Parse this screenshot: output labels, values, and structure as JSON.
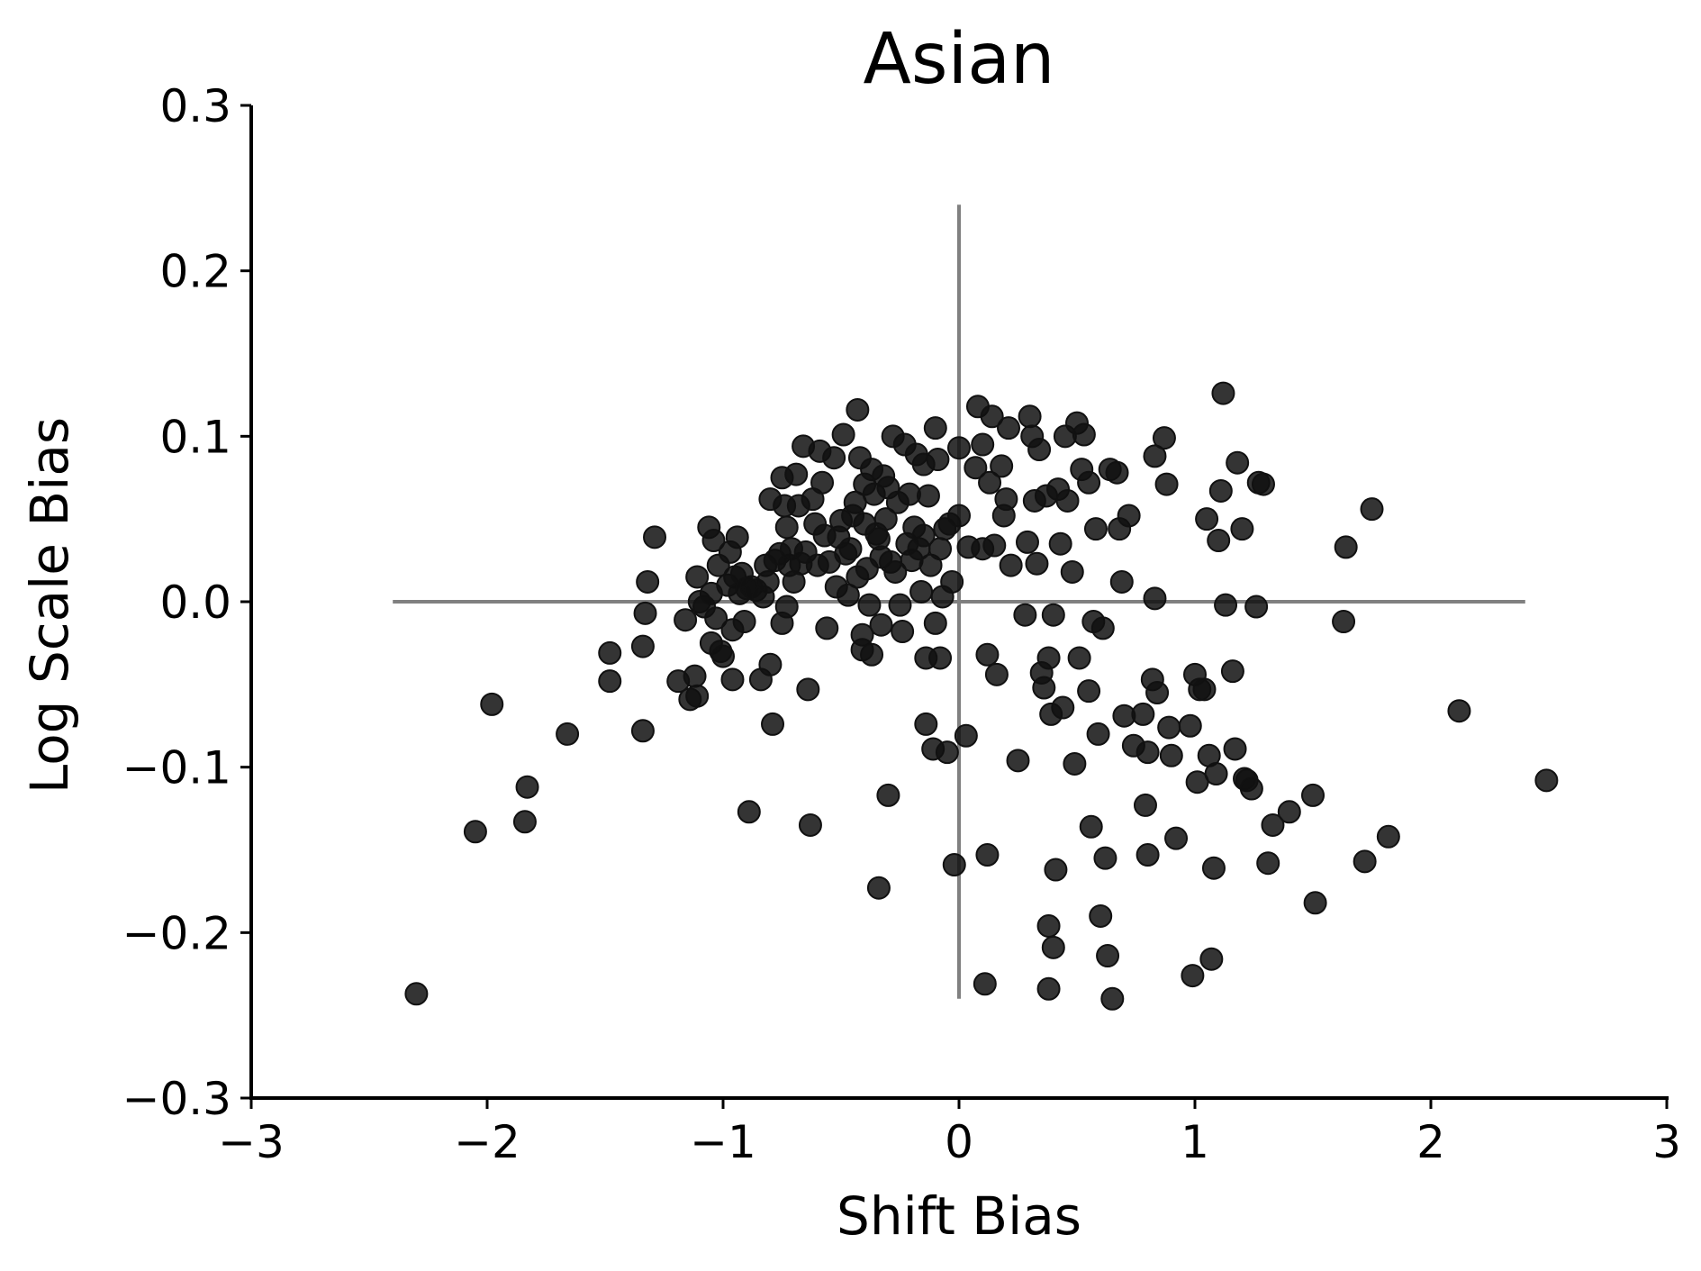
{
  "chart_data": {
    "type": "scatter",
    "title": "Asian",
    "xlabel": "Shift Bias",
    "ylabel": "Log Scale Bias",
    "xlim": [
      -3,
      3
    ],
    "ylim": [
      -0.3,
      0.3
    ],
    "xticks": [
      -3,
      -2,
      -1,
      0,
      1,
      2,
      3
    ],
    "xtick_labels": [
      "−3",
      "−2",
      "−1",
      "0",
      "1",
      "2",
      "3"
    ],
    "yticks": [
      -0.3,
      -0.2,
      -0.1,
      0.0,
      0.1,
      0.2,
      0.3
    ],
    "ytick_labels": [
      "−0.3",
      "−0.2",
      "−0.1",
      "0.0",
      "0.1",
      "0.2",
      "0.3"
    ],
    "grid": false,
    "reference_lines": {
      "color": "#808080",
      "horizontal": {
        "y": 0,
        "x_range": [
          -2.4,
          2.4
        ]
      },
      "vertical": {
        "x": 0,
        "y_range": [
          -0.24,
          0.24
        ]
      }
    },
    "marker_color": "#111111",
    "series": [
      {
        "points": [
          [
            -2.3,
            -0.237
          ],
          [
            -2.05,
            -0.139
          ],
          [
            -1.98,
            -0.062
          ],
          [
            -1.84,
            -0.133
          ],
          [
            -1.83,
            -0.112
          ],
          [
            -1.66,
            -0.08
          ],
          [
            -1.48,
            -0.031
          ],
          [
            -1.48,
            -0.048
          ],
          [
            -1.34,
            -0.027
          ],
          [
            -1.34,
            -0.078
          ],
          [
            -1.33,
            -0.007
          ],
          [
            -1.32,
            0.012
          ],
          [
            -1.29,
            0.039
          ],
          [
            -1.19,
            -0.048
          ],
          [
            -1.16,
            -0.011
          ],
          [
            -1.14,
            -0.059
          ],
          [
            -1.12,
            -0.045
          ],
          [
            -1.11,
            -0.057
          ],
          [
            -1.11,
            0.015
          ],
          [
            -1.1,
            0.0
          ],
          [
            -1.08,
            -0.003
          ],
          [
            -1.06,
            0.045
          ],
          [
            -1.05,
            0.005
          ],
          [
            -1.05,
            -0.025
          ],
          [
            -1.04,
            0.037
          ],
          [
            -1.03,
            -0.01
          ],
          [
            -1.02,
            0.022
          ],
          [
            -1.01,
            -0.03
          ],
          [
            -1.0,
            -0.033
          ],
          [
            -0.98,
            0.01
          ],
          [
            -0.97,
            0.03
          ],
          [
            -0.96,
            -0.047
          ],
          [
            -0.96,
            -0.017
          ],
          [
            -0.95,
            0.015
          ],
          [
            -0.94,
            0.039
          ],
          [
            -0.93,
            0.005
          ],
          [
            -0.92,
            0.017
          ],
          [
            -0.91,
            -0.012
          ],
          [
            -0.9,
            0.008
          ],
          [
            -0.89,
            -0.127
          ],
          [
            -0.88,
            0.009
          ],
          [
            -0.86,
            0.007
          ],
          [
            -0.84,
            -0.047
          ],
          [
            -0.83,
            0.003
          ],
          [
            -0.82,
            0.022
          ],
          [
            -0.81,
            0.012
          ],
          [
            -0.8,
            -0.038
          ],
          [
            -0.79,
            -0.074
          ],
          [
            -0.8,
            0.062
          ],
          [
            -0.78,
            0.025
          ],
          [
            -0.76,
            0.029
          ],
          [
            -0.75,
            -0.013
          ],
          [
            -0.75,
            0.075
          ],
          [
            -0.74,
            0.058
          ],
          [
            -0.73,
            -0.003
          ],
          [
            -0.73,
            0.045
          ],
          [
            -0.72,
            0.022
          ],
          [
            -0.71,
            0.032
          ],
          [
            -0.7,
            0.012
          ],
          [
            -0.69,
            0.077
          ],
          [
            -0.68,
            0.058
          ],
          [
            -0.67,
            0.023
          ],
          [
            -0.66,
            0.094
          ],
          [
            -0.65,
            0.03
          ],
          [
            -0.64,
            -0.053
          ],
          [
            -0.63,
            -0.135
          ],
          [
            -0.62,
            0.062
          ],
          [
            -0.61,
            0.047
          ],
          [
            -0.6,
            0.022
          ],
          [
            -0.59,
            0.091
          ],
          [
            -0.58,
            0.072
          ],
          [
            -0.57,
            0.04
          ],
          [
            -0.56,
            -0.016
          ],
          [
            -0.55,
            0.024
          ],
          [
            -0.53,
            0.087
          ],
          [
            -0.52,
            0.009
          ],
          [
            -0.51,
            0.039
          ],
          [
            -0.5,
            0.049
          ],
          [
            -0.49,
            0.101
          ],
          [
            -0.48,
            0.029
          ],
          [
            -0.47,
            0.004
          ],
          [
            -0.46,
            0.032
          ],
          [
            -0.45,
            0.052
          ],
          [
            -0.44,
            0.06
          ],
          [
            -0.43,
            0.116
          ],
          [
            -0.43,
            0.015
          ],
          [
            -0.42,
            0.087
          ],
          [
            -0.41,
            -0.02
          ],
          [
            -0.41,
            -0.029
          ],
          [
            -0.4,
            0.047
          ],
          [
            -0.4,
            0.071
          ],
          [
            -0.39,
            0.02
          ],
          [
            -0.38,
            -0.002
          ],
          [
            -0.37,
            -0.032
          ],
          [
            -0.37,
            0.08
          ],
          [
            -0.36,
            0.065
          ],
          [
            -0.35,
            0.041
          ],
          [
            -0.34,
            -0.173
          ],
          [
            -0.34,
            0.038
          ],
          [
            -0.33,
            0.027
          ],
          [
            -0.33,
            -0.014
          ],
          [
            -0.32,
            0.076
          ],
          [
            -0.31,
            0.05
          ],
          [
            -0.3,
            -0.117
          ],
          [
            -0.3,
            0.069
          ],
          [
            -0.29,
            0.024
          ],
          [
            -0.28,
            0.1
          ],
          [
            -0.27,
            0.018
          ],
          [
            -0.26,
            0.06
          ],
          [
            -0.25,
            -0.002
          ],
          [
            -0.24,
            -0.018
          ],
          [
            -0.23,
            0.095
          ],
          [
            -0.22,
            0.035
          ],
          [
            -0.21,
            0.065
          ],
          [
            -0.2,
            0.025
          ],
          [
            -0.19,
            0.045
          ],
          [
            -0.18,
            0.089
          ],
          [
            -0.17,
            0.032
          ],
          [
            -0.16,
            0.006
          ],
          [
            -0.15,
            0.083
          ],
          [
            -0.15,
            0.04
          ],
          [
            -0.14,
            -0.034
          ],
          [
            -0.14,
            -0.074
          ],
          [
            -0.13,
            0.064
          ],
          [
            -0.12,
            0.022
          ],
          [
            -0.11,
            -0.089
          ],
          [
            -0.1,
            0.105
          ],
          [
            -0.1,
            -0.013
          ],
          [
            -0.09,
            0.086
          ],
          [
            -0.08,
            -0.034
          ],
          [
            -0.08,
            0.032
          ],
          [
            -0.07,
            0.003
          ],
          [
            -0.06,
            0.044
          ],
          [
            -0.05,
            -0.091
          ],
          [
            -0.04,
            0.047
          ],
          [
            -0.03,
            0.012
          ],
          [
            0.0,
            0.052
          ],
          [
            0.0,
            0.093
          ],
          [
            -0.02,
            -0.159
          ],
          [
            0.03,
            -0.081
          ],
          [
            0.04,
            0.033
          ],
          [
            0.07,
            0.081
          ],
          [
            0.08,
            0.118
          ],
          [
            0.1,
            0.032
          ],
          [
            0.1,
            0.095
          ],
          [
            0.11,
            -0.231
          ],
          [
            0.12,
            -0.153
          ],
          [
            0.12,
            -0.032
          ],
          [
            0.13,
            0.072
          ],
          [
            0.14,
            0.112
          ],
          [
            0.15,
            0.034
          ],
          [
            0.16,
            -0.044
          ],
          [
            0.18,
            0.082
          ],
          [
            0.19,
            0.052
          ],
          [
            0.2,
            0.062
          ],
          [
            0.21,
            0.105
          ],
          [
            0.22,
            0.022
          ],
          [
            0.25,
            -0.096
          ],
          [
            0.28,
            -0.008
          ],
          [
            0.29,
            0.036
          ],
          [
            0.3,
            0.112
          ],
          [
            0.31,
            0.1
          ],
          [
            0.32,
            0.061
          ],
          [
            0.33,
            0.023
          ],
          [
            0.34,
            0.092
          ],
          [
            0.35,
            -0.043
          ],
          [
            0.36,
            -0.052
          ],
          [
            0.37,
            0.064
          ],
          [
            0.38,
            -0.196
          ],
          [
            0.38,
            -0.234
          ],
          [
            0.38,
            -0.034
          ],
          [
            0.39,
            -0.068
          ],
          [
            0.4,
            -0.209
          ],
          [
            0.4,
            -0.008
          ],
          [
            0.41,
            -0.162
          ],
          [
            0.42,
            0.068
          ],
          [
            0.43,
            0.035
          ],
          [
            0.44,
            -0.064
          ],
          [
            0.45,
            0.1
          ],
          [
            0.46,
            0.061
          ],
          [
            0.48,
            0.018
          ],
          [
            0.49,
            -0.098
          ],
          [
            0.5,
            0.108
          ],
          [
            0.51,
            -0.034
          ],
          [
            0.52,
            0.08
          ],
          [
            0.53,
            0.101
          ],
          [
            0.55,
            -0.054
          ],
          [
            0.55,
            0.072
          ],
          [
            0.56,
            -0.136
          ],
          [
            0.57,
            -0.012
          ],
          [
            0.58,
            0.044
          ],
          [
            0.59,
            -0.08
          ],
          [
            0.6,
            -0.19
          ],
          [
            0.61,
            -0.016
          ],
          [
            0.62,
            -0.155
          ],
          [
            0.63,
            -0.214
          ],
          [
            0.64,
            0.08
          ],
          [
            0.65,
            -0.24
          ],
          [
            0.67,
            0.078
          ],
          [
            0.68,
            0.044
          ],
          [
            0.69,
            0.012
          ],
          [
            0.7,
            -0.069
          ],
          [
            0.72,
            0.052
          ],
          [
            0.74,
            -0.087
          ],
          [
            0.78,
            -0.068
          ],
          [
            0.79,
            -0.123
          ],
          [
            0.8,
            -0.091
          ],
          [
            0.8,
            -0.153
          ],
          [
            0.82,
            -0.047
          ],
          [
            0.83,
            0.088
          ],
          [
            0.83,
            0.002
          ],
          [
            0.84,
            -0.055
          ],
          [
            0.87,
            0.099
          ],
          [
            0.88,
            0.071
          ],
          [
            0.89,
            -0.076
          ],
          [
            0.9,
            -0.093
          ],
          [
            0.92,
            -0.143
          ],
          [
            0.98,
            -0.075
          ],
          [
            0.99,
            -0.226
          ],
          [
            1.0,
            -0.044
          ],
          [
            1.01,
            -0.109
          ],
          [
            1.02,
            -0.053
          ],
          [
            1.04,
            -0.053
          ],
          [
            1.05,
            0.05
          ],
          [
            1.06,
            -0.093
          ],
          [
            1.07,
            -0.216
          ],
          [
            1.08,
            -0.161
          ],
          [
            1.09,
            -0.104
          ],
          [
            1.1,
            0.037
          ],
          [
            1.11,
            0.067
          ],
          [
            1.12,
            0.126
          ],
          [
            1.13,
            -0.002
          ],
          [
            1.16,
            -0.042
          ],
          [
            1.17,
            -0.089
          ],
          [
            1.18,
            0.084
          ],
          [
            1.2,
            0.044
          ],
          [
            1.21,
            -0.107
          ],
          [
            1.22,
            -0.108
          ],
          [
            1.24,
            -0.113
          ],
          [
            1.26,
            -0.003
          ],
          [
            1.27,
            0.072
          ],
          [
            1.29,
            0.071
          ],
          [
            1.31,
            -0.158
          ],
          [
            1.33,
            -0.135
          ],
          [
            1.4,
            -0.127
          ],
          [
            1.5,
            -0.117
          ],
          [
            1.51,
            -0.182
          ],
          [
            1.63,
            -0.012
          ],
          [
            1.64,
            0.033
          ],
          [
            1.72,
            -0.157
          ],
          [
            1.75,
            0.056
          ],
          [
            1.82,
            -0.142
          ],
          [
            2.12,
            -0.066
          ],
          [
            2.49,
            -0.108
          ]
        ]
      }
    ]
  }
}
